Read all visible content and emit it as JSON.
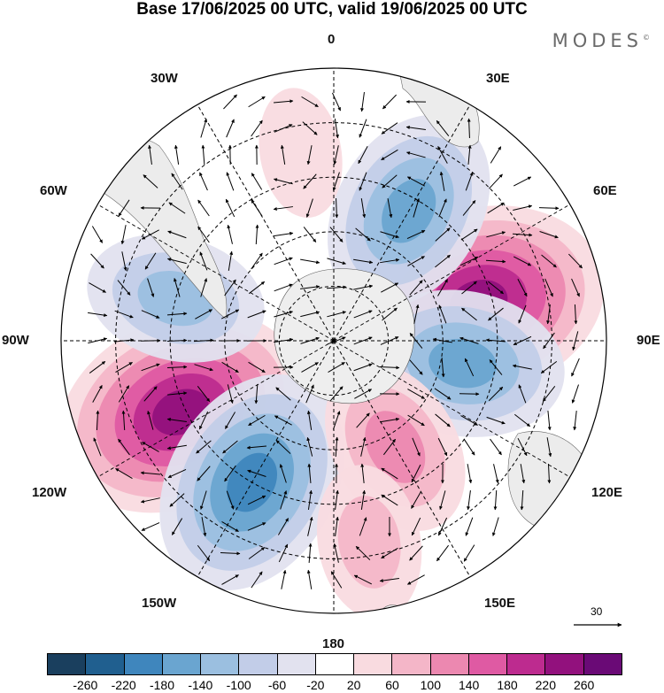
{
  "title": "Base 17/06/2025 00 UTC, valid 19/06/2025 00 UTC",
  "brand": "MODES",
  "brand_mark": "©",
  "map": {
    "projection": "south-polar-stereographic",
    "lon_labels": {
      "n0": "0",
      "n30e": "30E",
      "n60e": "60E",
      "n90e": "90E",
      "n120e": "120E",
      "n150e": "150E",
      "n180": "180",
      "n150w": "150W",
      "n120w": "120W",
      "n90w": "90W",
      "n60w": "60W",
      "n30w": "30W"
    },
    "vector_scale_label": "30",
    "anomaly_centers": [
      {
        "lon": "75E",
        "value": 260
      },
      {
        "lon": "115W",
        "value": 260
      },
      {
        "lon": "150W",
        "value": -220
      },
      {
        "lon": "30E",
        "value": -180
      },
      {
        "lon": "100E",
        "value": -160
      },
      {
        "lon": "75W",
        "value": -120
      },
      {
        "lon": "150E",
        "value": 140
      },
      {
        "lon": "170E",
        "value": 100
      },
      {
        "lon": "10W",
        "value": 60
      }
    ]
  },
  "colorbar": {
    "colors": [
      "#1a3f5e",
      "#205f8f",
      "#3f86bd",
      "#6aa5d0",
      "#9bbfe0",
      "#c2cde8",
      "#e2e2ef",
      "#ffffff",
      "#f9dbe0",
      "#f4b6c8",
      "#ec88b0",
      "#df5aa3",
      "#bd2b8f",
      "#92117d",
      "#6a0a76"
    ],
    "ticks": [
      "-260",
      "-220",
      "-180",
      "-140",
      "-100",
      "-60",
      "-20",
      "20",
      "60",
      "100",
      "140",
      "180",
      "220",
      "260"
    ]
  }
}
